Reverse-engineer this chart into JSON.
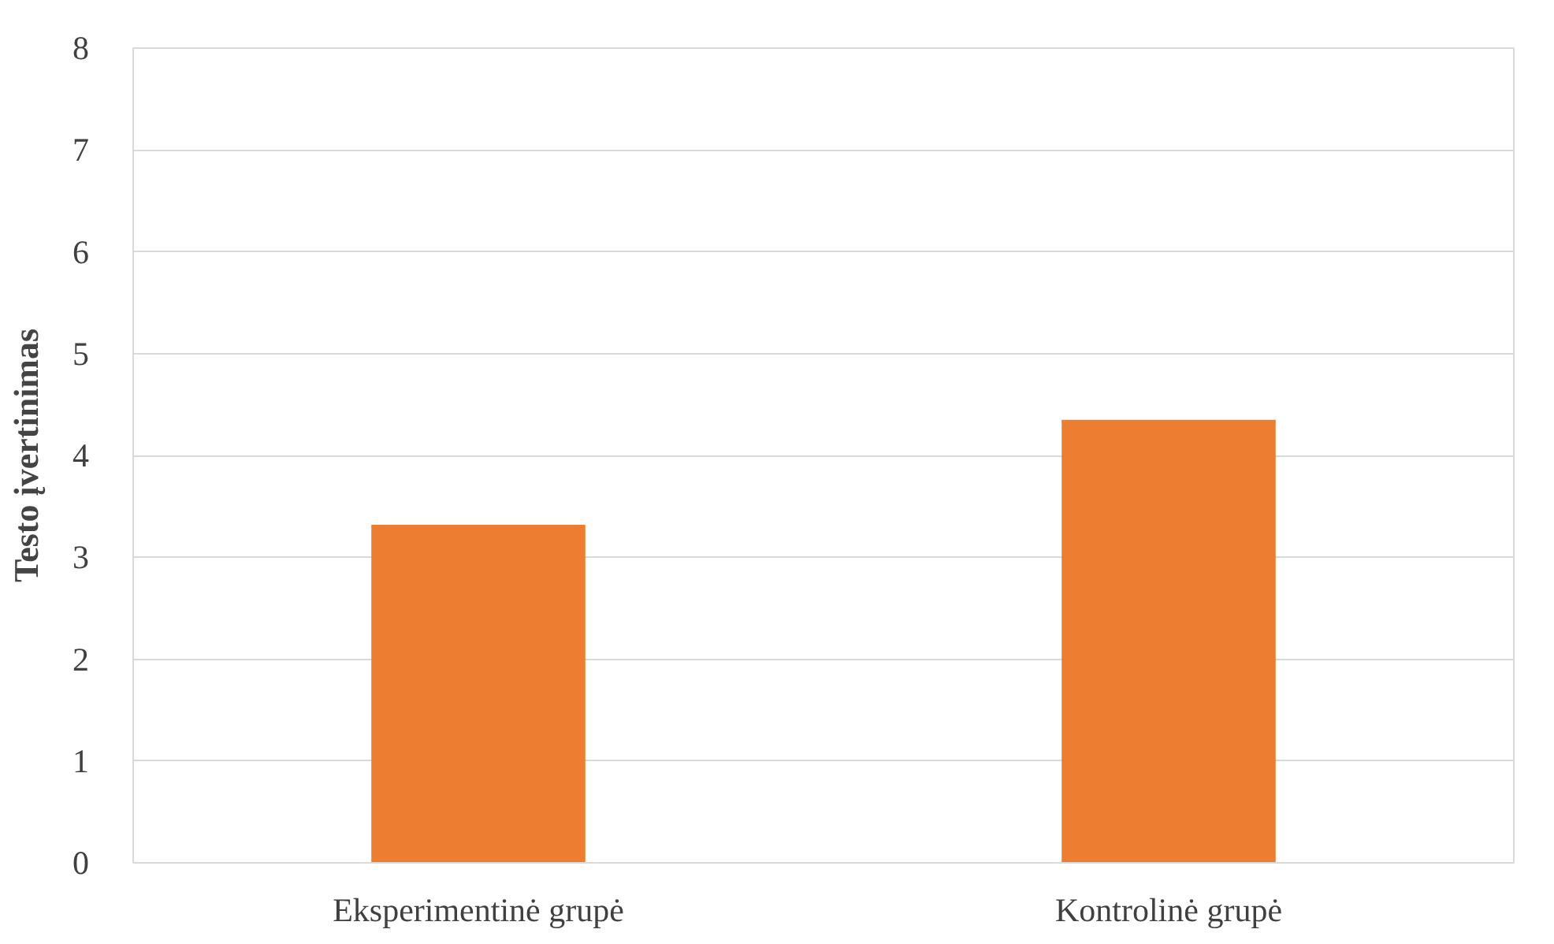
{
  "chart_data": {
    "type": "bar",
    "ylabel": "Testo įvertinimas",
    "categories": [
      "Eksperimentinė grupė",
      "Kontrolinė grupė"
    ],
    "series": [
      {
        "color": "#ed7d31",
        "values": [
          3.32,
          4.35
        ]
      }
    ],
    "ylim": [
      0,
      8
    ],
    "yticks": [
      0,
      1,
      2,
      3,
      4,
      5,
      6,
      7,
      8
    ],
    "grid": "y"
  }
}
